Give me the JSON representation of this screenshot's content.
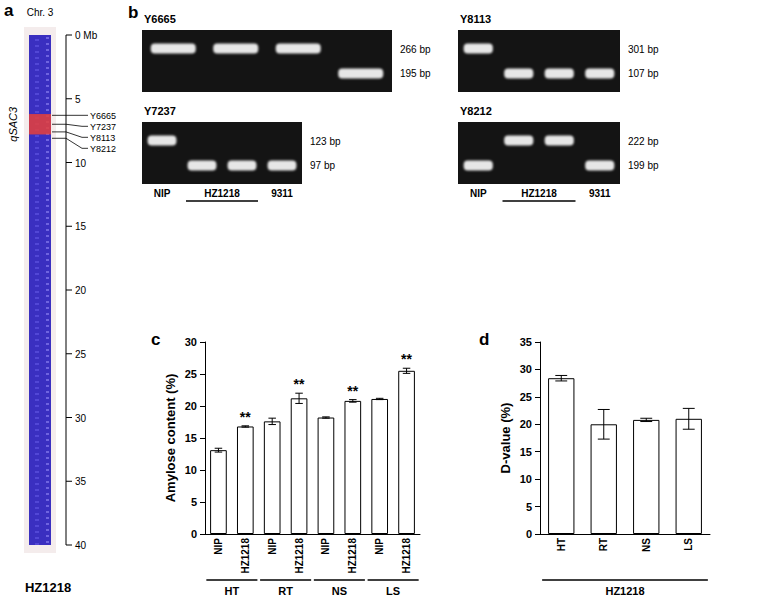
{
  "panels": {
    "a": {
      "label": "a",
      "chromosome": "Chr. 3",
      "scale": {
        "range": [
          0,
          40
        ],
        "ticks": [
          {
            "value": 0,
            "label": "0 Mb"
          },
          5,
          10,
          15,
          20,
          25,
          30,
          35,
          40
        ]
      },
      "qtl": {
        "label": "qSAC3",
        "start": 6.2,
        "end": 7.8
      },
      "markers": [
        {
          "name": "Y6665",
          "position": 6.3
        },
        {
          "name": "Y7237",
          "position": 7.0
        },
        {
          "name": "Y8113",
          "position": 7.6
        },
        {
          "name": "Y8212",
          "position": 8.1
        }
      ],
      "line": "HZ1218"
    },
    "b": {
      "label": "b",
      "gels": [
        {
          "marker": "Y6665",
          "bands": [
            {
              "value": 266,
              "label": "266 bp"
            },
            {
              "value": 195,
              "label": "195 bp"
            }
          ],
          "lanes": [
            266,
            266,
            266,
            195
          ]
        },
        {
          "marker": "Y8113",
          "bands": [
            {
              "value": 301,
              "label": "301 bp"
            },
            {
              "value": 107,
              "label": "107 bp"
            }
          ],
          "lanes": [
            301,
            107,
            107,
            107
          ]
        },
        {
          "marker": "Y7237",
          "bands": [
            {
              "value": 123,
              "label": "123 bp"
            },
            {
              "value": 97,
              "label": "97 bp"
            }
          ],
          "lanes": [
            123,
            97,
            97,
            97
          ],
          "lane_labels": [
            "NIP",
            "HZ1218",
            "HZ1218",
            "9311"
          ]
        },
        {
          "marker": "Y8212",
          "bands": [
            {
              "value": 222,
              "label": "222 bp"
            },
            {
              "value": 199,
              "label": "199 bp"
            }
          ],
          "lanes": [
            199,
            222,
            222,
            199
          ],
          "lane_labels": [
            "NIP",
            "HZ1218",
            "HZ1218",
            "9311"
          ]
        }
      ]
    }
  },
  "chart_data": [
    {
      "type": "bar",
      "title": "c",
      "y_label": "Amylose content (%)",
      "categories": [
        "NIP",
        "HZ1218",
        "NIP",
        "HZ1218",
        "NIP",
        "HZ1218",
        "NIP",
        "HZ1218"
      ],
      "groups": [
        "HT",
        "HT",
        "RT",
        "RT",
        "NS",
        "NS",
        "LS",
        "LS"
      ],
      "values": [
        13.1,
        16.8,
        17.6,
        21.2,
        18.2,
        20.8,
        21.1,
        25.5
      ],
      "errors": [
        0.3,
        0.1,
        0.5,
        0.8,
        0.1,
        0.2,
        0.1,
        0.4
      ],
      "annotations": [
        null,
        "**",
        null,
        "**",
        null,
        "**",
        null,
        "**"
      ],
      "color": "#ffffff",
      "grid": false,
      "ylim": [
        0,
        30
      ],
      "yticks": [
        0,
        5,
        10,
        15,
        20,
        25,
        30
      ]
    },
    {
      "type": "bar",
      "title": "d",
      "y_label": "D-value (%)",
      "categories": [
        "HT",
        "RT",
        "NS",
        "LS"
      ],
      "groups": [
        "HZ1218",
        "HZ1218",
        "HZ1218",
        "HZ1218"
      ],
      "values": [
        28.4,
        20.0,
        20.8,
        21.0
      ],
      "errors": [
        0.5,
        2.7,
        0.3,
        1.9
      ],
      "color": "#ffffff",
      "grid": false,
      "ylim": [
        0,
        35
      ],
      "yticks": [
        0,
        5,
        10,
        15,
        20,
        25,
        30,
        35
      ]
    }
  ]
}
